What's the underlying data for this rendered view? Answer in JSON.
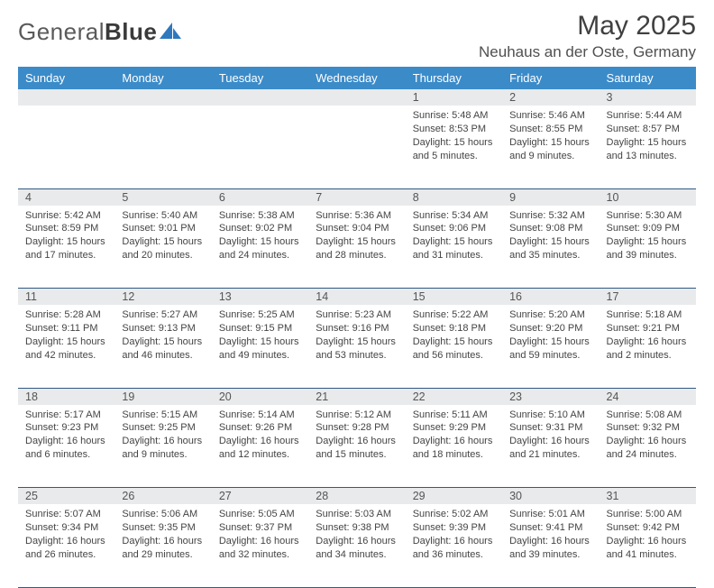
{
  "brand": {
    "name1": "General",
    "name2": "Blue",
    "accent": "#2e78bd"
  },
  "title": "May 2025",
  "location": "Neuhaus an der Oste, Germany",
  "style": {
    "header_bg": "#3b8bc9",
    "header_fg": "#ffffff",
    "daynum_bg": "#e9eaeb",
    "daynum_fg": "#555555",
    "body_fg": "#444444",
    "rule_color": "#2f5a86",
    "page_bg": "#ffffff",
    "title_fontsize": 30,
    "location_fontsize": 17,
    "th_fontsize": 13,
    "daynum_fontsize": 12.5,
    "body_fontsize": 11
  },
  "weekdays": [
    "Sunday",
    "Monday",
    "Tuesday",
    "Wednesday",
    "Thursday",
    "Friday",
    "Saturday"
  ],
  "weeks": [
    [
      null,
      null,
      null,
      null,
      {
        "n": "1",
        "sr": "5:48 AM",
        "ss": "8:53 PM",
        "dl": "15 hours and 5 minutes."
      },
      {
        "n": "2",
        "sr": "5:46 AM",
        "ss": "8:55 PM",
        "dl": "15 hours and 9 minutes."
      },
      {
        "n": "3",
        "sr": "5:44 AM",
        "ss": "8:57 PM",
        "dl": "15 hours and 13 minutes."
      }
    ],
    [
      {
        "n": "4",
        "sr": "5:42 AM",
        "ss": "8:59 PM",
        "dl": "15 hours and 17 minutes."
      },
      {
        "n": "5",
        "sr": "5:40 AM",
        "ss": "9:01 PM",
        "dl": "15 hours and 20 minutes."
      },
      {
        "n": "6",
        "sr": "5:38 AM",
        "ss": "9:02 PM",
        "dl": "15 hours and 24 minutes."
      },
      {
        "n": "7",
        "sr": "5:36 AM",
        "ss": "9:04 PM",
        "dl": "15 hours and 28 minutes."
      },
      {
        "n": "8",
        "sr": "5:34 AM",
        "ss": "9:06 PM",
        "dl": "15 hours and 31 minutes."
      },
      {
        "n": "9",
        "sr": "5:32 AM",
        "ss": "9:08 PM",
        "dl": "15 hours and 35 minutes."
      },
      {
        "n": "10",
        "sr": "5:30 AM",
        "ss": "9:09 PM",
        "dl": "15 hours and 39 minutes."
      }
    ],
    [
      {
        "n": "11",
        "sr": "5:28 AM",
        "ss": "9:11 PM",
        "dl": "15 hours and 42 minutes."
      },
      {
        "n": "12",
        "sr": "5:27 AM",
        "ss": "9:13 PM",
        "dl": "15 hours and 46 minutes."
      },
      {
        "n": "13",
        "sr": "5:25 AM",
        "ss": "9:15 PM",
        "dl": "15 hours and 49 minutes."
      },
      {
        "n": "14",
        "sr": "5:23 AM",
        "ss": "9:16 PM",
        "dl": "15 hours and 53 minutes."
      },
      {
        "n": "15",
        "sr": "5:22 AM",
        "ss": "9:18 PM",
        "dl": "15 hours and 56 minutes."
      },
      {
        "n": "16",
        "sr": "5:20 AM",
        "ss": "9:20 PM",
        "dl": "15 hours and 59 minutes."
      },
      {
        "n": "17",
        "sr": "5:18 AM",
        "ss": "9:21 PM",
        "dl": "16 hours and 2 minutes."
      }
    ],
    [
      {
        "n": "18",
        "sr": "5:17 AM",
        "ss": "9:23 PM",
        "dl": "16 hours and 6 minutes."
      },
      {
        "n": "19",
        "sr": "5:15 AM",
        "ss": "9:25 PM",
        "dl": "16 hours and 9 minutes."
      },
      {
        "n": "20",
        "sr": "5:14 AM",
        "ss": "9:26 PM",
        "dl": "16 hours and 12 minutes."
      },
      {
        "n": "21",
        "sr": "5:12 AM",
        "ss": "9:28 PM",
        "dl": "16 hours and 15 minutes."
      },
      {
        "n": "22",
        "sr": "5:11 AM",
        "ss": "9:29 PM",
        "dl": "16 hours and 18 minutes."
      },
      {
        "n": "23",
        "sr": "5:10 AM",
        "ss": "9:31 PM",
        "dl": "16 hours and 21 minutes."
      },
      {
        "n": "24",
        "sr": "5:08 AM",
        "ss": "9:32 PM",
        "dl": "16 hours and 24 minutes."
      }
    ],
    [
      {
        "n": "25",
        "sr": "5:07 AM",
        "ss": "9:34 PM",
        "dl": "16 hours and 26 minutes."
      },
      {
        "n": "26",
        "sr": "5:06 AM",
        "ss": "9:35 PM",
        "dl": "16 hours and 29 minutes."
      },
      {
        "n": "27",
        "sr": "5:05 AM",
        "ss": "9:37 PM",
        "dl": "16 hours and 32 minutes."
      },
      {
        "n": "28",
        "sr": "5:03 AM",
        "ss": "9:38 PM",
        "dl": "16 hours and 34 minutes."
      },
      {
        "n": "29",
        "sr": "5:02 AM",
        "ss": "9:39 PM",
        "dl": "16 hours and 36 minutes."
      },
      {
        "n": "30",
        "sr": "5:01 AM",
        "ss": "9:41 PM",
        "dl": "16 hours and 39 minutes."
      },
      {
        "n": "31",
        "sr": "5:00 AM",
        "ss": "9:42 PM",
        "dl": "16 hours and 41 minutes."
      }
    ]
  ],
  "labels": {
    "sunrise": "Sunrise: ",
    "sunset": "Sunset: ",
    "daylight": "Daylight: "
  }
}
